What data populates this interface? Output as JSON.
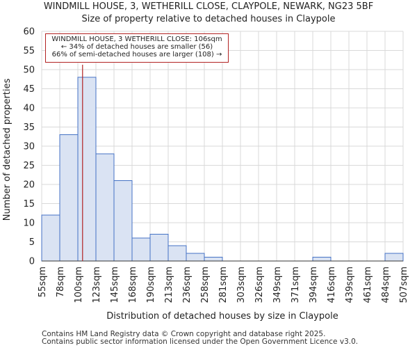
{
  "chart_data": {
    "type": "bar",
    "title": "WINDMILL HOUSE, 3, WETHERILL CLOSE, CLAYPOLE, NEWARK, NG23 5BF",
    "subtitle": "Size of property relative to detached houses in Claypole",
    "xlabel": "Distribution of detached houses by size in Claypole",
    "ylabel": "Number of detached properties",
    "ylim": [
      0,
      60
    ],
    "yticks": [
      0,
      5,
      10,
      15,
      20,
      25,
      30,
      35,
      40,
      45,
      50,
      55,
      60
    ],
    "bin_edges": [
      "55sqm",
      "78sqm",
      "100sqm",
      "123sqm",
      "145sqm",
      "168sqm",
      "190sqm",
      "213sqm",
      "236sqm",
      "258sqm",
      "281sqm",
      "303sqm",
      "326sqm",
      "349sqm",
      "371sqm",
      "394sqm",
      "416sqm",
      "439sqm",
      "461sqm",
      "484sqm",
      "507sqm"
    ],
    "values": [
      12,
      33,
      48,
      28,
      21,
      6,
      7,
      4,
      2,
      1,
      0,
      0,
      0,
      0,
      0,
      1,
      0,
      0,
      0,
      2
    ],
    "property_marker": {
      "value_sqm": 106,
      "bin_start_sqm": 100,
      "bin_end_sqm": 123,
      "bin_index": 2
    },
    "annotation": [
      "WINDMILL HOUSE, 3 WETHERILL CLOSE: 106sqm",
      "← 34% of detached houses are smaller (56)",
      "66% of semi-detached houses are larger (108) →"
    ],
    "colors": {
      "bar_fill": "#dae3f3",
      "bar_edge": "#4472c4",
      "marker": "#b22222",
      "grid": "#d9d9d9"
    }
  },
  "footer": [
    "Contains HM Land Registry data © Crown copyright and database right 2025.",
    "Contains public sector information licensed under the Open Government Licence v3.0."
  ]
}
